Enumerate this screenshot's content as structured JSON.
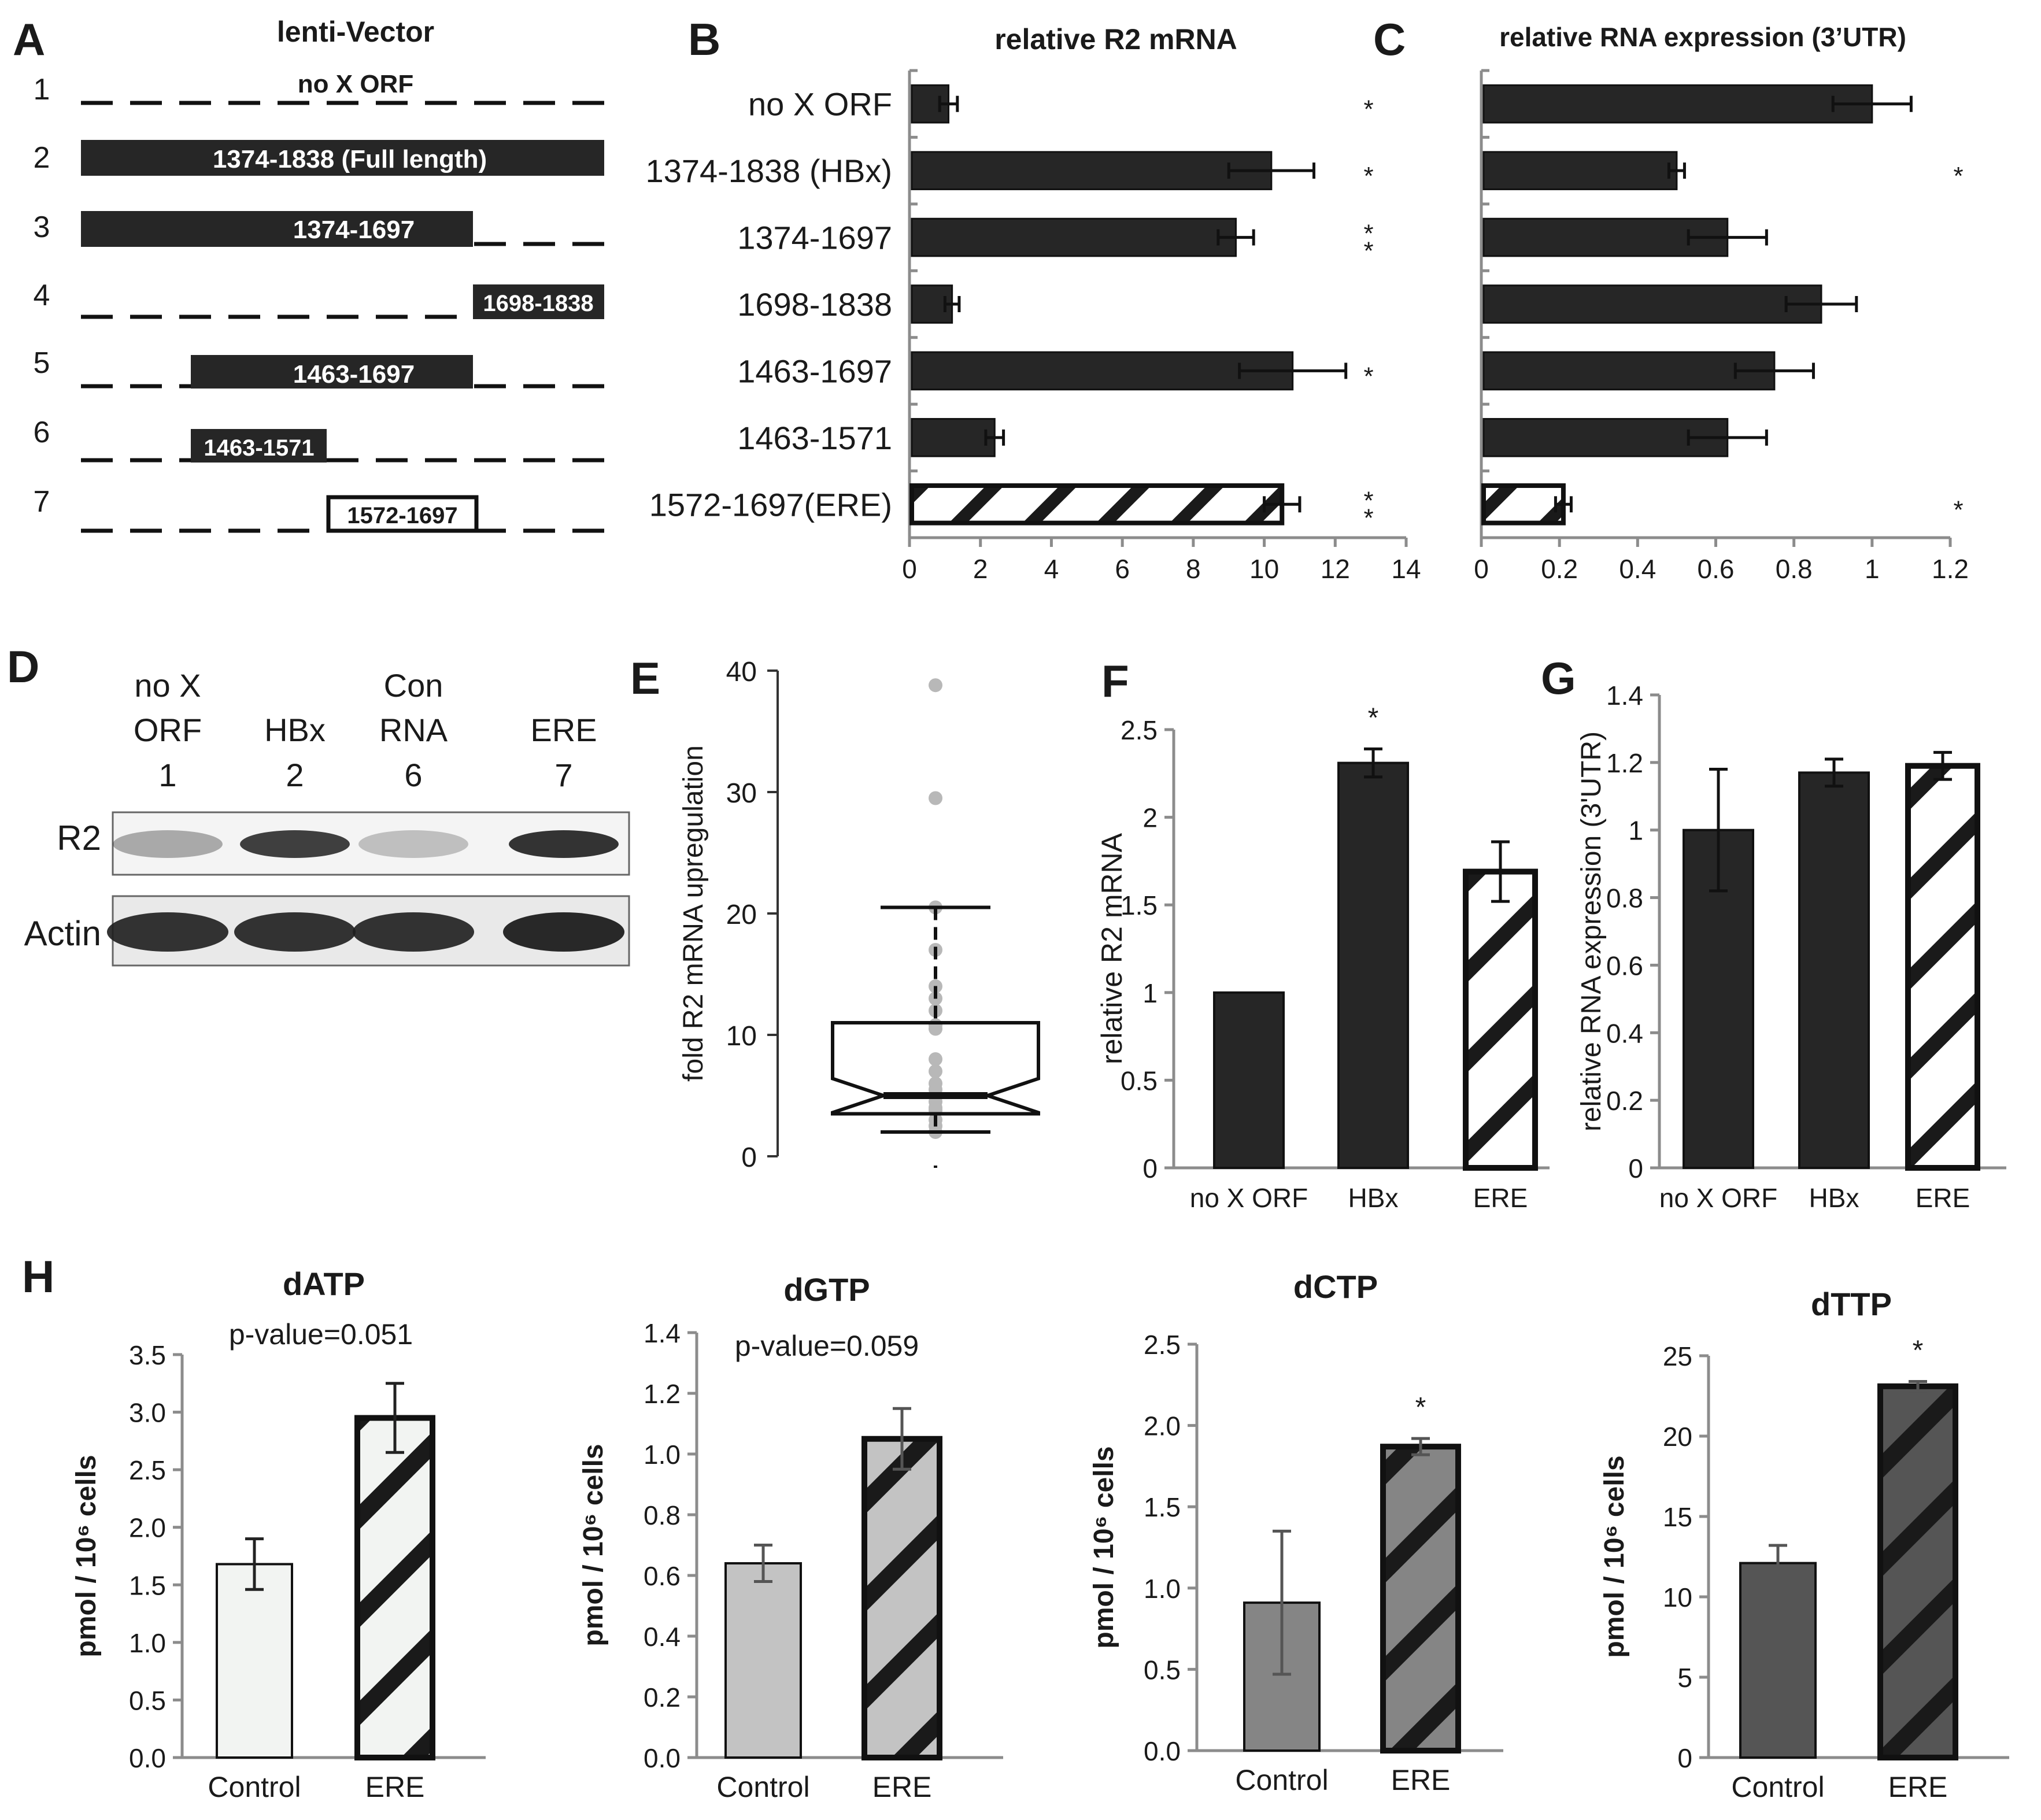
{
  "panel_labels": {
    "A": "A",
    "B": "B",
    "C": "C",
    "D": "D",
    "E": "E",
    "F": "F",
    "G": "G",
    "H": "H"
  },
  "colors": {
    "bar": "#262626",
    "outline": "#111111",
    "axis": "#8c8c8c",
    "text": "#1a1a1a",
    "dATP": "#f2f4f2",
    "dGTP": "#c3c3c3",
    "dCTP": "#858585",
    "dTTP": "#555555",
    "err_grey": "#6e6e6e",
    "box_points": "#b8b8b8"
  },
  "panelA": {
    "title": "lenti-Vector",
    "rows": [
      {
        "num": "1",
        "label": "no X ORF",
        "type": "none"
      },
      {
        "num": "2",
        "label": "1374-1838 (Full length)",
        "type": "filled"
      },
      {
        "num": "3",
        "label": "1374-1697",
        "type": "filled"
      },
      {
        "num": "4",
        "label": "1698-1838",
        "type": "filled"
      },
      {
        "num": "5",
        "label": "1463-1697",
        "type": "filled"
      },
      {
        "num": "6",
        "label": "1463-1571",
        "type": "filled"
      },
      {
        "num": "7",
        "label": "1572-1697",
        "type": "open"
      }
    ]
  },
  "panelD": {
    "lanes": [
      {
        "line1": "no X",
        "line2": "ORF",
        "num": "1"
      },
      {
        "line1": "",
        "line2": "HBx",
        "num": "2"
      },
      {
        "line1": "Con",
        "line2": "RNA",
        "num": "6"
      },
      {
        "line1": "",
        "line2": "ERE",
        "num": "7"
      }
    ],
    "bands": [
      "R2",
      "Actin"
    ],
    "r2_intensity": [
      0.35,
      0.85,
      0.25,
      0.9
    ],
    "actin_intensity": [
      0.9,
      0.9,
      0.9,
      0.95
    ]
  },
  "chart_data": [
    {
      "id": "B",
      "type": "bar",
      "orientation": "horizontal",
      "title": "relative R2 mRNA",
      "categories": [
        "no X ORF",
        "1374-1838 (HBx)",
        "1374-1697",
        "1698-1838",
        "1463-1697",
        "1463-1571",
        "1572-1697(ERE)"
      ],
      "values": [
        1.1,
        10.2,
        9.2,
        1.2,
        10.8,
        2.4,
        10.5
      ],
      "errors": [
        0.25,
        1.2,
        0.5,
        0.2,
        1.5,
        0.25,
        0.5
      ],
      "hatched": [
        false,
        false,
        false,
        false,
        false,
        false,
        true
      ],
      "significance": [
        "*",
        "",
        "**",
        "",
        "*",
        "",
        "**"
      ],
      "significance_text": [
        "",
        "*",
        "",
        "",
        "",
        "",
        ""
      ],
      "xlim": [
        0,
        14
      ],
      "ticks": [
        "0",
        "2",
        "4",
        "6",
        "8",
        "10",
        "12",
        "14"
      ]
    },
    {
      "id": "C",
      "type": "bar",
      "orientation": "horizontal",
      "title": "relative RNA expression (3’UTR)",
      "categories": [
        "no X ORF",
        "1374-1838 (HBx)",
        "1374-1697",
        "1698-1838",
        "1463-1697",
        "1463-1571",
        "1572-1697(ERE)"
      ],
      "values": [
        1.0,
        0.5,
        0.63,
        0.87,
        0.75,
        0.63,
        0.21
      ],
      "errors": [
        0.1,
        0.02,
        0.1,
        0.09,
        0.1,
        0.1,
        0.02
      ],
      "hatched": [
        false,
        false,
        false,
        false,
        false,
        false,
        true
      ],
      "significance_text": [
        "",
        "*",
        "",
        "",
        "",
        "",
        "*"
      ],
      "xlim": [
        0,
        1.2
      ],
      "ticks": [
        "0",
        "0.2",
        "0.4",
        "0.6",
        "0.8",
        "1",
        "1.2"
      ]
    },
    {
      "id": "E",
      "type": "box",
      "ylabel": "fold R2 mRNA upregulation",
      "ylim": [
        0,
        40
      ],
      "ticks": [
        "0",
        "10",
        "20",
        "30",
        "40"
      ],
      "whisker_low": 2,
      "q1": 3.5,
      "median": 5,
      "q3": 11,
      "whisker_high": 20.5,
      "notch_low": 3.6,
      "notch_high": 6.4,
      "points": [
        38.8,
        29.5,
        20.5,
        17,
        14,
        13,
        12,
        10.8,
        10.5,
        8,
        7,
        6,
        5.5,
        4.5,
        4,
        3.8,
        3,
        2.5,
        2
      ]
    },
    {
      "id": "F",
      "type": "bar",
      "ylabel": "relative R2 mRNA",
      "categories": [
        "no X ORF",
        "HBx",
        "ERE"
      ],
      "values": [
        1.0,
        2.31,
        1.69
      ],
      "errors": [
        0.0,
        0.08,
        0.17
      ],
      "hatched": [
        false,
        false,
        true
      ],
      "significance_text": [
        "",
        "*",
        ""
      ],
      "ylim": [
        0,
        2.5
      ],
      "ticks": [
        "0",
        "0.5",
        "1",
        "1.5",
        "2",
        "2.5"
      ]
    },
    {
      "id": "G",
      "type": "bar",
      "ylabel": "relative RNA expression (3'UTR)",
      "categories": [
        "no X ORF",
        "HBx",
        "ERE"
      ],
      "values": [
        1.0,
        1.17,
        1.19
      ],
      "errors": [
        0.18,
        0.04,
        0.04
      ],
      "hatched": [
        false,
        false,
        true
      ],
      "ylim": [
        0,
        1.4
      ],
      "ticks": [
        "0",
        "0.2",
        "0.4",
        "0.6",
        "0.8",
        "1",
        "1.2",
        "1.4"
      ]
    },
    {
      "id": "H1",
      "type": "bar",
      "title": "dATP",
      "annotation": "p-value=0.051",
      "ylabel": "pmol / 10⁶ cells",
      "categories": [
        "Control",
        "ERE"
      ],
      "values": [
        1.68,
        2.95
      ],
      "errors": [
        0.22,
        0.3
      ],
      "hatched": [
        false,
        true
      ],
      "significance_text": [
        "",
        ""
      ],
      "color": "#f2f4f2",
      "ylim": [
        0,
        3.5
      ],
      "ticks": [
        "0.0",
        "0.5",
        "1.0",
        "1.5",
        "2.0",
        "2.5",
        "3.0",
        "3.5"
      ]
    },
    {
      "id": "H2",
      "type": "bar",
      "title": "dGTP",
      "annotation": "p-value=0.059",
      "ylabel": "pmol / 10⁶ cells",
      "categories": [
        "Control",
        "ERE"
      ],
      "values": [
        0.64,
        1.05
      ],
      "errors": [
        0.06,
        0.1
      ],
      "hatched": [
        false,
        true
      ],
      "significance_text": [
        "",
        ""
      ],
      "color": "#c3c3c3",
      "ylim": [
        0,
        1.4
      ],
      "ticks": [
        "0.0",
        "0.2",
        "0.4",
        "0.6",
        "0.8",
        "1.0",
        "1.2",
        "1.4"
      ]
    },
    {
      "id": "H3",
      "type": "bar",
      "title": "dCTP",
      "annotation": "",
      "ylabel": "pmol / 10⁶ cells",
      "categories": [
        "Control",
        "ERE"
      ],
      "values": [
        0.91,
        1.87
      ],
      "errors": [
        0.44,
        0.05
      ],
      "hatched": [
        false,
        true
      ],
      "significance_text": [
        "",
        "*"
      ],
      "color": "#858585",
      "ylim": [
        0,
        2.5
      ],
      "ticks": [
        "0.0",
        "0.5",
        "1.0",
        "1.5",
        "2.0",
        "2.5"
      ]
    },
    {
      "id": "H4",
      "type": "bar",
      "title": "dTTP",
      "annotation": "",
      "ylabel": "pmol / 10⁶ cells",
      "categories": [
        "Control",
        "ERE"
      ],
      "values": [
        12.1,
        23.1
      ],
      "errors": [
        1.1,
        0.3
      ],
      "hatched": [
        false,
        true
      ],
      "significance_text": [
        "",
        "*"
      ],
      "color": "#555555",
      "ylim": [
        0,
        25
      ],
      "ticks": [
        "0",
        "5",
        "10",
        "15",
        "20",
        "25"
      ]
    }
  ]
}
